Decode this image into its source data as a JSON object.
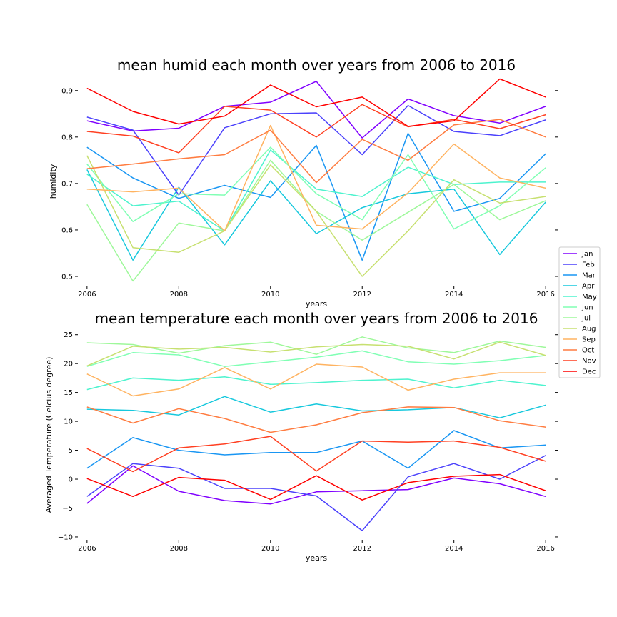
{
  "months": [
    "Jan",
    "Feb",
    "Mar",
    "Apr",
    "May",
    "Jun",
    "Jul",
    "Aug",
    "Sep",
    "Oct",
    "Nov",
    "Dec"
  ],
  "colors": [
    "#8000ff",
    "#4b41fc",
    "#1996f3",
    "#16c8dd",
    "#4df3ce",
    "#80ffb4",
    "#9ef89a",
    "#c7e070",
    "#ffb360",
    "#ff7c40",
    "#ff3f21",
    "#ff0000"
  ],
  "chart_data": [
    {
      "type": "line",
      "title": "mean humid each month over years from 2006 to 2016",
      "xlabel": "years",
      "ylabel": "humidity",
      "x": [
        2006,
        2007,
        2008,
        2009,
        2010,
        2011,
        2012,
        2013,
        2014,
        2015,
        2016
      ],
      "xlim": [
        2005.8,
        2016.2
      ],
      "ylim": [
        0.48,
        0.935
      ],
      "xticks": [
        2006,
        2008,
        2010,
        2012,
        2014,
        2016
      ],
      "yticks": [
        0.5,
        0.6,
        0.7,
        0.8,
        0.9
      ],
      "grid": false,
      "series": [
        {
          "name": "Jan",
          "values": [
            0.835,
            0.813,
            0.819,
            0.866,
            0.875,
            0.92,
            0.798,
            0.882,
            0.846,
            0.83,
            0.866
          ]
        },
        {
          "name": "Feb",
          "values": [
            0.843,
            0.815,
            0.675,
            0.82,
            0.85,
            0.852,
            0.762,
            0.868,
            0.812,
            0.803,
            0.837
          ]
        },
        {
          "name": "Mar",
          "values": [
            0.778,
            0.712,
            0.668,
            0.696,
            0.67,
            0.782,
            0.535,
            0.808,
            0.64,
            0.668,
            0.764
          ]
        },
        {
          "name": "Apr",
          "values": [
            0.73,
            0.535,
            0.692,
            0.568,
            0.706,
            0.592,
            0.648,
            0.678,
            0.688,
            0.547,
            0.66
          ]
        },
        {
          "name": "May",
          "values": [
            0.72,
            0.652,
            0.662,
            0.598,
            0.772,
            0.688,
            0.672,
            0.735,
            0.698,
            0.703,
            0.703
          ]
        },
        {
          "name": "Jun",
          "values": [
            0.742,
            0.618,
            0.678,
            0.675,
            0.778,
            0.678,
            0.622,
            0.762,
            0.602,
            0.652,
            0.734
          ]
        },
        {
          "name": "Jul",
          "values": [
            0.655,
            0.49,
            0.615,
            0.598,
            0.75,
            0.64,
            0.578,
            0.638,
            0.698,
            0.622,
            0.663
          ]
        },
        {
          "name": "Aug",
          "values": [
            0.76,
            0.562,
            0.552,
            0.598,
            0.74,
            0.64,
            0.5,
            0.598,
            0.708,
            0.658,
            0.672
          ]
        },
        {
          "name": "Sep",
          "values": [
            0.688,
            0.682,
            0.69,
            0.598,
            0.825,
            0.61,
            0.602,
            0.68,
            0.785,
            0.712,
            0.69
          ]
        },
        {
          "name": "Oct",
          "values": [
            0.732,
            0.742,
            0.753,
            0.762,
            0.815,
            0.702,
            0.795,
            0.75,
            0.826,
            0.838,
            0.8
          ]
        },
        {
          "name": "Nov",
          "values": [
            0.812,
            0.802,
            0.766,
            0.866,
            0.858,
            0.8,
            0.87,
            0.822,
            0.838,
            0.818,
            0.848
          ]
        },
        {
          "name": "Dec",
          "values": [
            0.905,
            0.855,
            0.828,
            0.845,
            0.912,
            0.865,
            0.886,
            0.823,
            0.835,
            0.925,
            0.886
          ]
        }
      ]
    },
    {
      "type": "line",
      "title": "mean temperature each month over years from 2006 to 2016",
      "xlabel": "years",
      "ylabel": "Averaged Temperature (Celcius degree)",
      "x": [
        2006,
        2007,
        2008,
        2009,
        2010,
        2011,
        2012,
        2013,
        2014,
        2015,
        2016
      ],
      "xlim": [
        2005.8,
        2016.2
      ],
      "ylim": [
        -10.5,
        26.2
      ],
      "xticks": [
        2006,
        2008,
        2010,
        2012,
        2014,
        2016
      ],
      "yticks": [
        -10,
        -5,
        0,
        5,
        10,
        15,
        20,
        25
      ],
      "grid": false,
      "series": [
        {
          "name": "Jan",
          "values": [
            -4.2,
            2.3,
            -2.1,
            -3.7,
            -4.3,
            -2.2,
            -2.0,
            -1.8,
            0.2,
            -0.8,
            -3.0
          ]
        },
        {
          "name": "Feb",
          "values": [
            -3.0,
            2.7,
            1.9,
            -1.6,
            -1.6,
            -2.9,
            -8.9,
            0.4,
            2.7,
            0.0,
            4.1
          ]
        },
        {
          "name": "Mar",
          "values": [
            1.9,
            7.2,
            5.0,
            4.2,
            4.6,
            4.6,
            6.6,
            1.9,
            8.4,
            5.4,
            5.9
          ]
        },
        {
          "name": "Apr",
          "values": [
            12.1,
            11.9,
            11.1,
            14.3,
            11.6,
            13.0,
            11.8,
            12.0,
            12.4,
            10.6,
            12.8
          ]
        },
        {
          "name": "May",
          "values": [
            15.5,
            17.5,
            17.1,
            17.7,
            16.4,
            16.7,
            17.1,
            17.3,
            15.8,
            17.1,
            16.2
          ]
        },
        {
          "name": "Jun",
          "values": [
            19.5,
            21.9,
            21.5,
            19.5,
            20.3,
            21.1,
            22.2,
            20.3,
            19.9,
            20.5,
            21.4
          ]
        },
        {
          "name": "Jul",
          "values": [
            23.6,
            23.3,
            21.8,
            23.1,
            23.7,
            21.6,
            24.6,
            22.7,
            21.9,
            23.9,
            22.8
          ]
        },
        {
          "name": "Aug",
          "values": [
            19.6,
            23.0,
            22.5,
            22.8,
            22.0,
            22.9,
            23.3,
            23.0,
            20.8,
            23.7,
            21.4
          ]
        },
        {
          "name": "Sep",
          "values": [
            18.2,
            14.4,
            15.6,
            19.3,
            15.6,
            19.9,
            19.4,
            15.4,
            17.3,
            18.4,
            18.4
          ]
        },
        {
          "name": "Oct",
          "values": [
            12.5,
            9.7,
            12.2,
            10.5,
            8.1,
            9.4,
            11.5,
            12.5,
            12.4,
            10.1,
            9.0
          ]
        },
        {
          "name": "Nov",
          "values": [
            5.3,
            1.3,
            5.4,
            6.1,
            7.4,
            1.4,
            6.6,
            6.4,
            6.6,
            5.5,
            3.1
          ]
        },
        {
          "name": "Dec",
          "values": [
            0.1,
            -3.0,
            0.3,
            -0.2,
            -3.5,
            0.6,
            -3.6,
            -0.6,
            0.5,
            0.8,
            -2.0
          ]
        }
      ]
    }
  ]
}
